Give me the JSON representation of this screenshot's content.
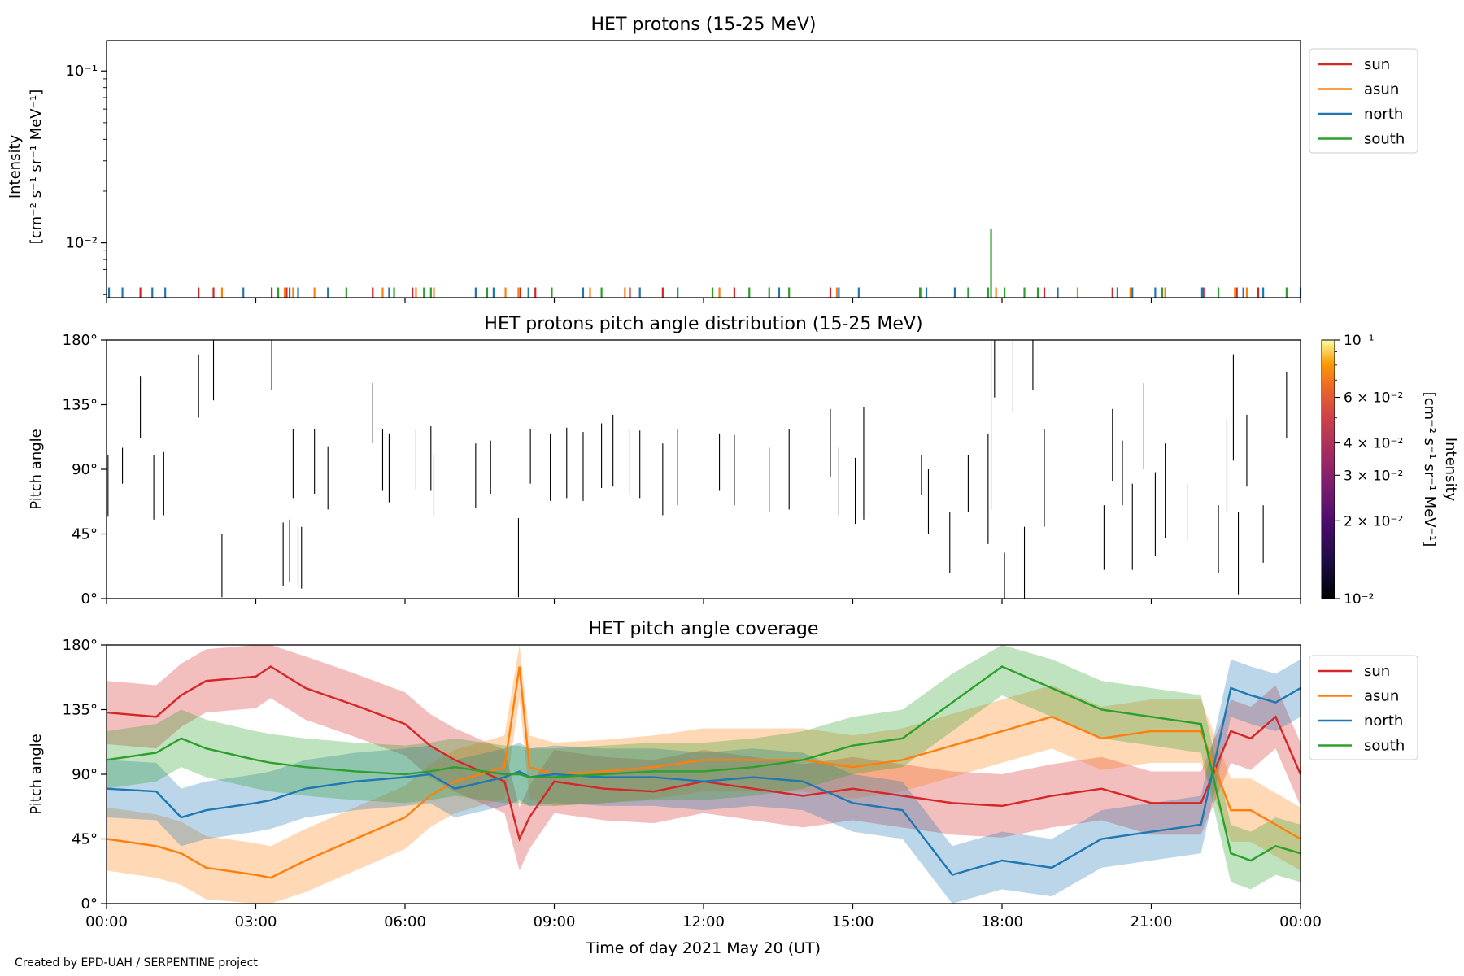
{
  "figure": {
    "credit": "Created by EPD-UAH / SERPENTINE project",
    "xlabel": "Time of day 2021 May 20 (UT)",
    "xticks": [
      "00:00",
      "03:00",
      "06:00",
      "09:00",
      "12:00",
      "15:00",
      "18:00",
      "21:00",
      "00:00"
    ]
  },
  "colors": {
    "sun": "#d62728",
    "asun": "#ff7f0e",
    "north": "#1f77b4",
    "south": "#2ca02c"
  },
  "legend": [
    "sun",
    "asun",
    "north",
    "south"
  ],
  "chart_data": [
    {
      "type": "line",
      "title": "HET protons (15-25 MeV)",
      "ylabel": "Intensity",
      "yunit": "[cm⁻² s⁻¹ sr⁻¹ MeV⁻¹]",
      "yscale": "log",
      "ylim": [
        0.0048,
        0.15
      ],
      "ytick_labels": [
        "10⁻²",
        "10⁻¹"
      ],
      "xlim_hours": [
        0,
        24
      ],
      "legend_placement": "outside upper right",
      "series": [
        {
          "name": "sun",
          "x_hours": [
            0.68,
            1.85,
            2.15,
            3.32,
            3.62,
            5.35,
            6.15,
            8.32,
            8.62,
            10.52,
            11.18,
            12.62,
            14.55,
            18.85,
            20.22,
            22.05,
            22.72,
            23.15
          ],
          "values": [
            0.0055,
            0.0055,
            0.0055,
            0.0055,
            0.0055,
            0.0055,
            0.0055,
            0.0055,
            0.0055,
            0.0055,
            0.0055,
            0.0055,
            0.0055,
            0.0055,
            0.0055,
            0.0055,
            0.0055,
            0.0055
          ]
        },
        {
          "name": "asun",
          "x_hours": [
            2.32,
            3.58,
            3.75,
            4.18,
            5.55,
            6.22,
            6.58,
            8.02,
            8.28,
            9.72,
            10.42,
            12.32,
            14.68,
            16.38,
            17.88,
            19.52,
            20.58,
            21.28,
            22.68,
            22.92
          ],
          "values": [
            0.0055,
            0.0055,
            0.0055,
            0.0055,
            0.0055,
            0.0055,
            0.0055,
            0.0055,
            0.0055,
            0.0055,
            0.0055,
            0.0055,
            0.0055,
            0.0055,
            0.0055,
            0.0055,
            0.0055,
            0.0055,
            0.0055,
            0.0055
          ]
        },
        {
          "name": "north",
          "x_hours": [
            0.05,
            0.32,
            0.92,
            1.18,
            2.75,
            3.68,
            3.85,
            4.45,
            5.68,
            7.42,
            7.78,
            8.48,
            9.58,
            10.72,
            11.48,
            13.52,
            14.72,
            15.12,
            16.48,
            17.05,
            19.12,
            20.32,
            20.62,
            21.08,
            22.02,
            22.85,
            23.25,
            24.0
          ],
          "values": [
            0.0055,
            0.0055,
            0.0055,
            0.0055,
            0.0055,
            0.0055,
            0.0055,
            0.0055,
            0.0055,
            0.0055,
            0.0055,
            0.0055,
            0.0055,
            0.0055,
            0.0055,
            0.0055,
            0.0055,
            0.0055,
            0.0055,
            0.0055,
            0.0055,
            0.0055,
            0.0055,
            0.0055,
            0.0055,
            0.0055,
            0.0055,
            0.0055
          ]
        },
        {
          "name": "south",
          "x_hours": [
            3.45,
            4.82,
            5.78,
            6.38,
            6.52,
            7.65,
            8.95,
            9.95,
            12.18,
            12.92,
            13.32,
            13.72,
            16.35,
            17.32,
            17.72,
            18.05,
            18.45,
            18.72,
            21.22,
            22.35,
            23.72
          ],
          "values": [
            0.0055,
            0.0055,
            0.0055,
            0.0055,
            0.0055,
            0.0055,
            0.0055,
            0.0055,
            0.0055,
            0.0055,
            0.0055,
            0.0055,
            0.0055,
            0.0055,
            0.0055,
            0.0055,
            0.0055,
            0.0055,
            0.0055,
            0.0055,
            0.0055
          ]
        },
        {
          "name": "south",
          "x_hours": [
            17.78
          ],
          "values": [
            0.012
          ]
        }
      ]
    },
    {
      "type": "heatmap",
      "title": "HET protons pitch angle distribution (15-25 MeV)",
      "ylabel": "Pitch angle",
      "ylim": [
        0,
        180
      ],
      "ytick_labels": [
        "0°",
        "45°",
        "90°",
        "135°",
        "180°"
      ],
      "xlim_hours": [
        0,
        24
      ],
      "colorbar": {
        "label": "Intensity",
        "unit": "[cm⁻² s⁻¹ sr⁻¹ MeV⁻¹]",
        "scale": "log",
        "range": [
          0.01,
          0.1
        ],
        "colormap": "inferno",
        "tick_labels": [
          "10⁻²",
          "2 × 10⁻²",
          "3 × 10⁻²",
          "4 × 10⁻²",
          "6 × 10⁻²",
          "10⁻¹"
        ]
      },
      "segments": [
        [
          0.03,
          57,
          100
        ],
        [
          0.32,
          80,
          105
        ],
        [
          0.68,
          112,
          155
        ],
        [
          0.95,
          55,
          100
        ],
        [
          1.15,
          58,
          102
        ],
        [
          1.85,
          126,
          170
        ],
        [
          2.15,
          138,
          180
        ],
        [
          2.32,
          1,
          45
        ],
        [
          3.32,
          145,
          180
        ],
        [
          3.55,
          9,
          53
        ],
        [
          3.68,
          12,
          55
        ],
        [
          3.75,
          70,
          118
        ],
        [
          3.85,
          8,
          50
        ],
        [
          3.92,
          7,
          50
        ],
        [
          4.18,
          73,
          118
        ],
        [
          4.45,
          62,
          106
        ],
        [
          5.35,
          108,
          150
        ],
        [
          5.55,
          75,
          118
        ],
        [
          5.68,
          67,
          115
        ],
        [
          6.22,
          76,
          118
        ],
        [
          6.52,
          75,
          120
        ],
        [
          6.58,
          57,
          100
        ],
        [
          7.42,
          63,
          108
        ],
        [
          7.72,
          73,
          110
        ],
        [
          8.28,
          1,
          56
        ],
        [
          8.52,
          80,
          118
        ],
        [
          8.92,
          68,
          115
        ],
        [
          9.25,
          70,
          119
        ],
        [
          9.58,
          68,
          116
        ],
        [
          9.95,
          77,
          122
        ],
        [
          10.18,
          78,
          128
        ],
        [
          10.52,
          72,
          118
        ],
        [
          10.72,
          70,
          117
        ],
        [
          11.18,
          58,
          108
        ],
        [
          11.48,
          65,
          118
        ],
        [
          12.32,
          75,
          115
        ],
        [
          12.62,
          65,
          114
        ],
        [
          13.32,
          60,
          105
        ],
        [
          13.72,
          62,
          118
        ],
        [
          14.55,
          85,
          132
        ],
        [
          14.72,
          58,
          105
        ],
        [
          15.05,
          52,
          98
        ],
        [
          15.22,
          55,
          133
        ],
        [
          16.38,
          72,
          100
        ],
        [
          16.52,
          45,
          90
        ],
        [
          16.95,
          18,
          60
        ],
        [
          17.32,
          60,
          100
        ],
        [
          17.72,
          38,
          115
        ],
        [
          17.78,
          62,
          180
        ],
        [
          17.85,
          140,
          180
        ],
        [
          18.05,
          0,
          32
        ],
        [
          18.22,
          130,
          180
        ],
        [
          18.45,
          0,
          50
        ],
        [
          18.62,
          145,
          180
        ],
        [
          18.85,
          50,
          118
        ],
        [
          20.05,
          20,
          65
        ],
        [
          20.22,
          82,
          132
        ],
        [
          20.42,
          65,
          110
        ],
        [
          20.62,
          20,
          80
        ],
        [
          20.85,
          90,
          150
        ],
        [
          21.08,
          30,
          88
        ],
        [
          21.28,
          42,
          108
        ],
        [
          21.72,
          40,
          80
        ],
        [
          22.35,
          18,
          65
        ],
        [
          22.52,
          60,
          125
        ],
        [
          22.65,
          96,
          170
        ],
        [
          22.75,
          3,
          60
        ],
        [
          22.92,
          78,
          128
        ],
        [
          23.25,
          25,
          65
        ],
        [
          23.72,
          112,
          158
        ]
      ]
    },
    {
      "type": "line",
      "title": "HET pitch angle coverage",
      "ylabel": "Pitch angle",
      "ylim": [
        0,
        180
      ],
      "ytick_labels": [
        "0°",
        "45°",
        "90°",
        "135°",
        "180°"
      ],
      "xlim_hours": [
        0,
        24
      ],
      "legend_placement": "outside upper right",
      "band": "shaded range around each series",
      "series": [
        {
          "name": "sun",
          "x_hours": [
            0,
            1,
            1.5,
            2,
            3,
            3.3,
            4,
            5,
            6,
            6.5,
            7,
            8,
            8.3,
            8.5,
            9,
            10,
            11,
            12,
            13,
            14,
            15,
            16,
            17,
            18,
            19,
            20,
            21,
            22,
            22.6,
            23,
            23.5,
            24
          ],
          "values": [
            133,
            130,
            145,
            155,
            158,
            165,
            150,
            138,
            125,
            110,
            100,
            85,
            45,
            60,
            85,
            80,
            78,
            85,
            80,
            75,
            80,
            75,
            70,
            68,
            75,
            80,
            70,
            70,
            120,
            115,
            130,
            90
          ],
          "spread": 22
        },
        {
          "name": "asun",
          "x_hours": [
            0,
            1,
            1.5,
            2,
            3,
            3.3,
            4,
            5,
            6,
            6.5,
            7,
            8,
            8.3,
            8.5,
            9,
            10,
            11,
            12,
            13,
            14,
            15,
            16,
            17,
            18,
            19,
            20,
            21,
            22,
            22.6,
            23,
            23.5,
            24
          ],
          "values": [
            45,
            40,
            35,
            25,
            20,
            18,
            30,
            45,
            60,
            75,
            85,
            95,
            165,
            95,
            90,
            92,
            95,
            100,
            100,
            100,
            95,
            100,
            110,
            120,
            130,
            115,
            120,
            120,
            65,
            65,
            55,
            45
          ],
          "spread": 22
        },
        {
          "name": "north",
          "x_hours": [
            0,
            1,
            1.5,
            2,
            3,
            3.3,
            4,
            5,
            6,
            6.5,
            7,
            8,
            8.3,
            8.5,
            9,
            10,
            11,
            12,
            13,
            14,
            15,
            16,
            17,
            18,
            19,
            20,
            21,
            22,
            22.6,
            23,
            23.5,
            24
          ],
          "values": [
            80,
            78,
            60,
            65,
            70,
            72,
            80,
            85,
            88,
            90,
            80,
            88,
            92,
            88,
            90,
            88,
            88,
            85,
            88,
            85,
            70,
            65,
            20,
            30,
            25,
            45,
            50,
            55,
            150,
            145,
            140,
            150
          ],
          "spread": 20
        },
        {
          "name": "south",
          "x_hours": [
            0,
            1,
            1.5,
            2,
            3,
            3.3,
            4,
            5,
            6,
            6.5,
            7,
            8,
            8.3,
            8.5,
            9,
            10,
            11,
            12,
            13,
            14,
            15,
            16,
            17,
            18,
            19,
            20,
            21,
            22,
            22.6,
            23,
            23.5,
            24
          ],
          "values": [
            100,
            105,
            115,
            108,
            100,
            98,
            95,
            92,
            90,
            92,
            95,
            90,
            90,
            88,
            88,
            90,
            92,
            92,
            95,
            100,
            110,
            115,
            140,
            165,
            150,
            135,
            130,
            125,
            35,
            30,
            40,
            35
          ],
          "spread": 20
        }
      ]
    }
  ]
}
